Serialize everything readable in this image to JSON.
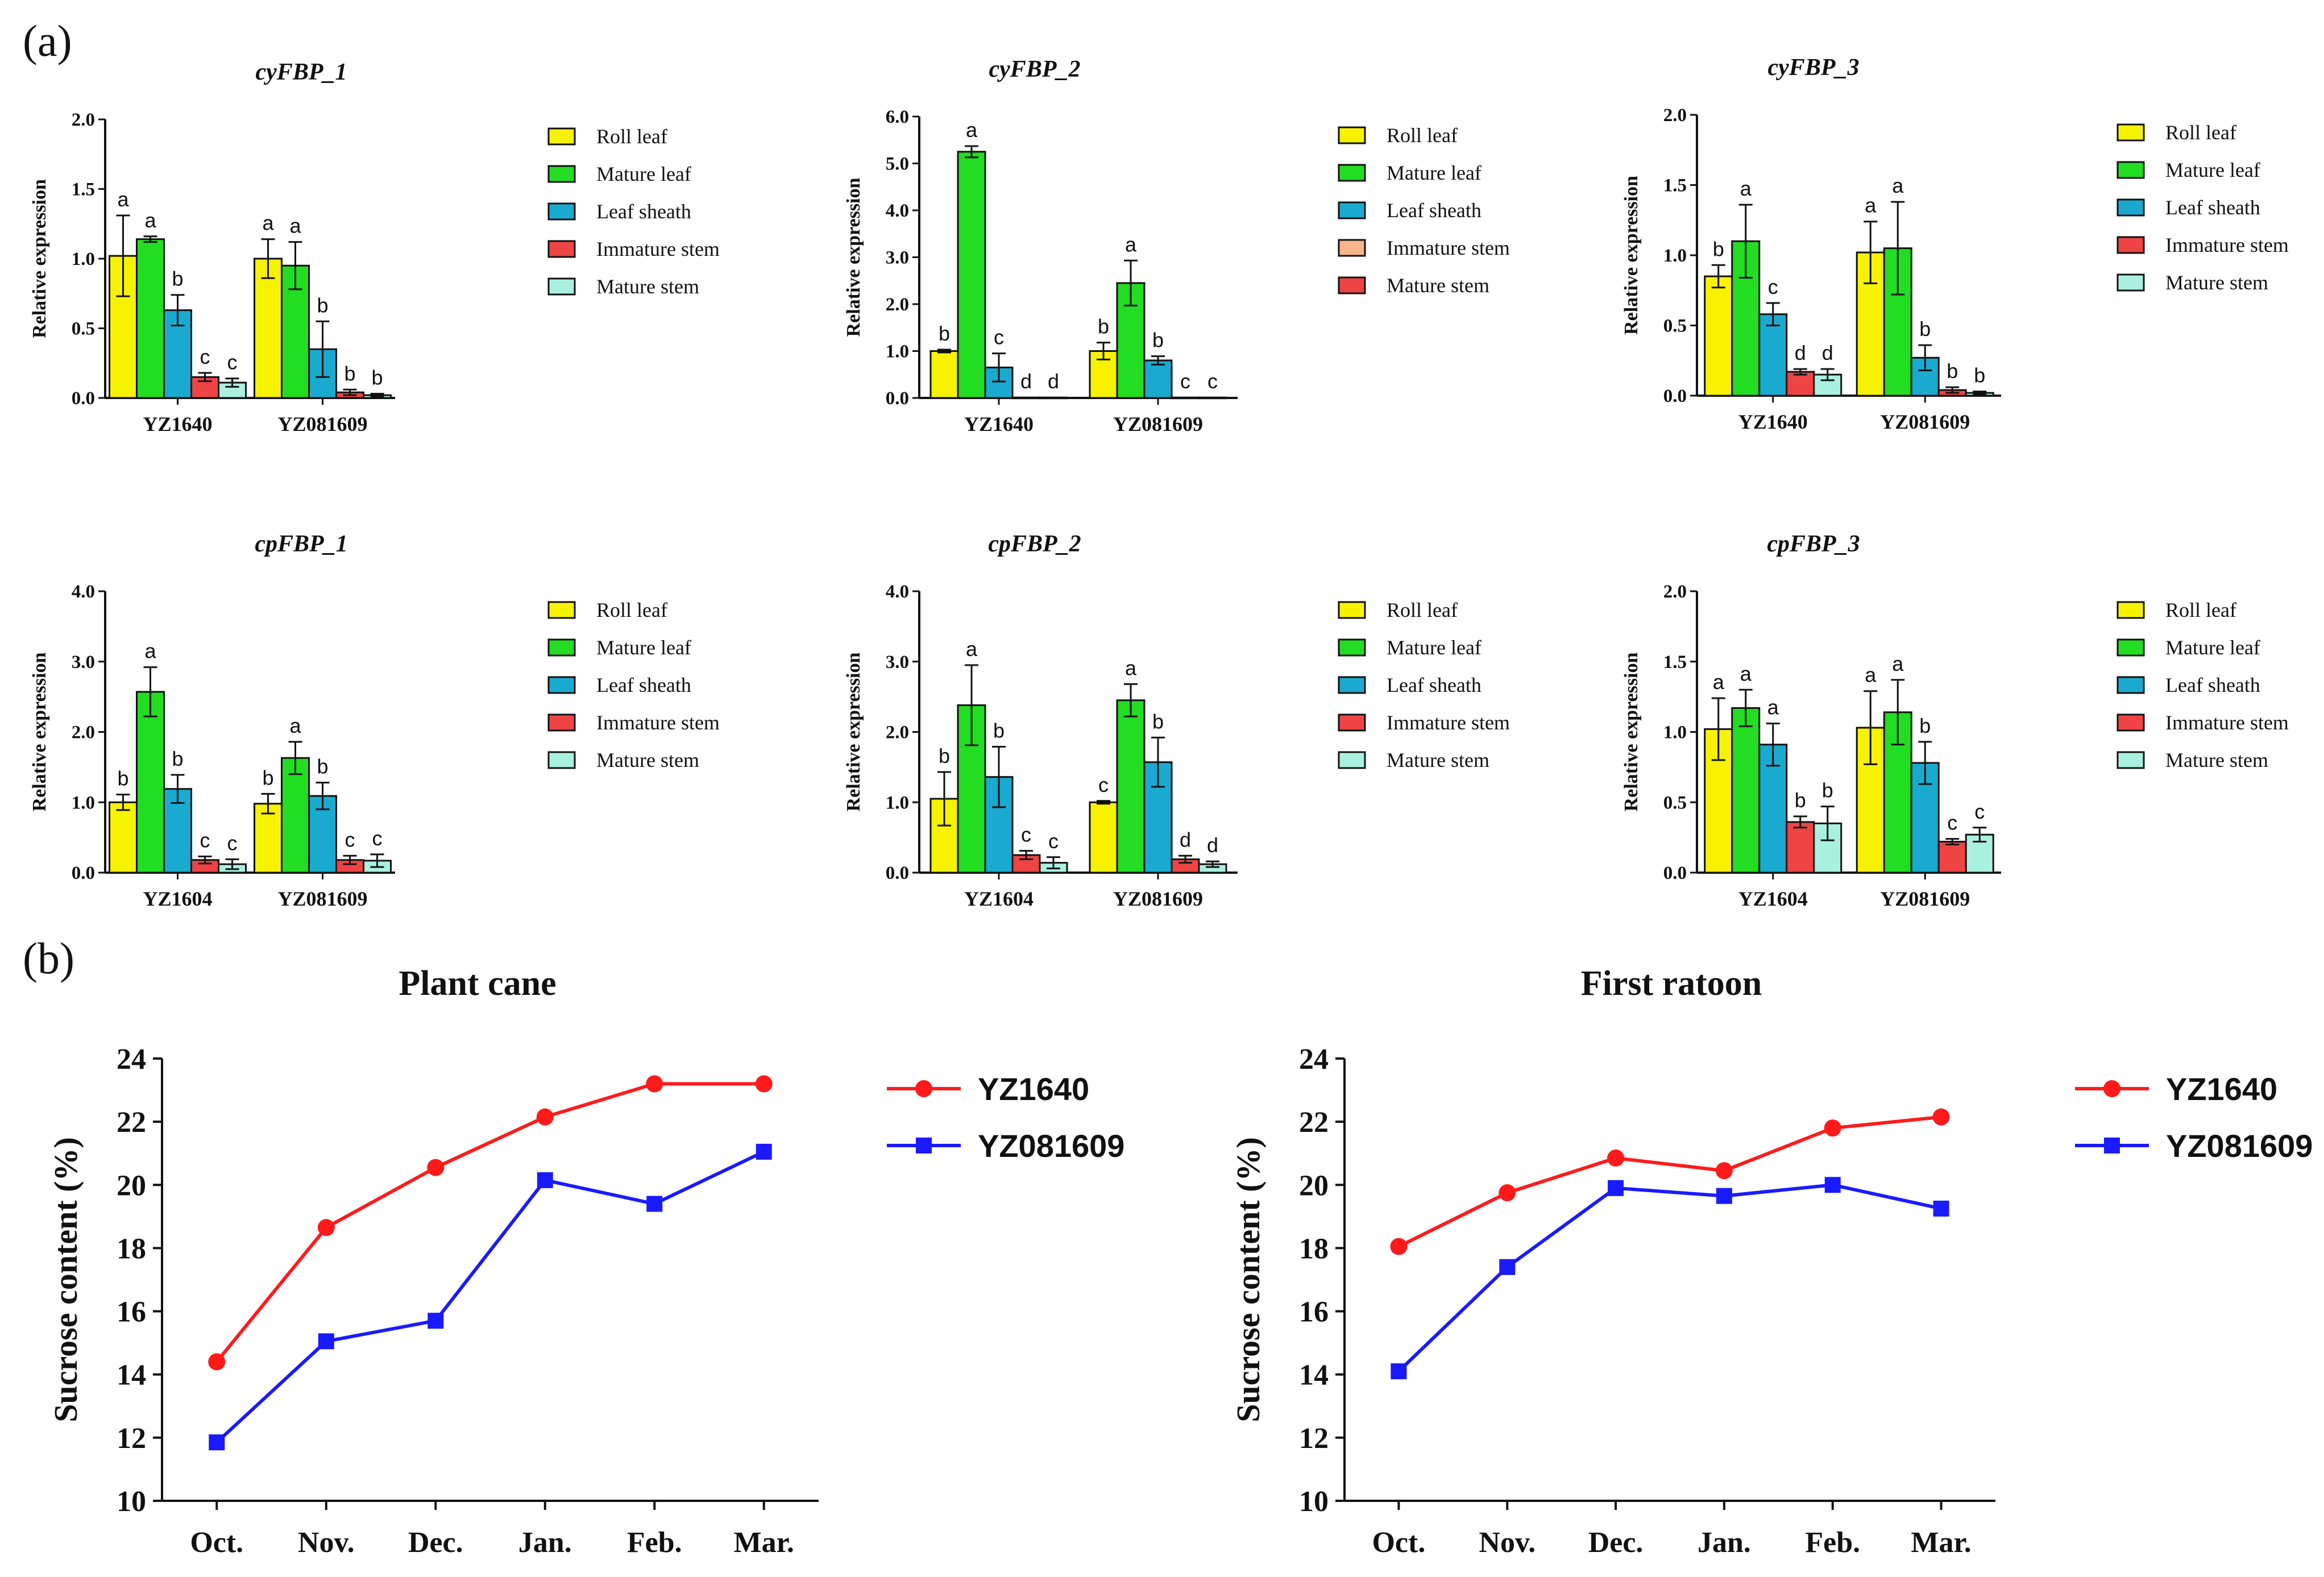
{
  "labels": {
    "panel_a": "(a)",
    "panel_b": "(b)"
  },
  "colors": {
    "roll_leaf": "#f7f200",
    "mature_leaf": "#22dd22",
    "leaf_sheath": "#1aaad0",
    "immature_stem": "#ee4444",
    "mature_stem": "#aaf0e0",
    "orange": "#f7b58a",
    "line_red": "#ff1a1a",
    "line_blue": "#1a1aff"
  },
  "chart_data": [
    {
      "type": "bar",
      "title": "cyFBP_1",
      "ylabel": "Relative expression",
      "ylim": [
        0,
        2.0
      ],
      "yticks": [
        "0.0",
        "0.5",
        "1.0",
        "1.5",
        "2.0"
      ],
      "ytick_values": [
        0,
        0.5,
        1.0,
        1.5,
        2.0
      ],
      "categories": [
        "YZ1640",
        "YZ081609"
      ],
      "legend": [
        "Roll leaf",
        "Mature leaf",
        "Leaf sheath",
        "Immature stem",
        "Mature stem"
      ],
      "series_colors": [
        "roll_leaf",
        "mature_leaf",
        "leaf_sheath",
        "immature_stem",
        "mature_stem"
      ],
      "groups": [
        {
          "values": [
            1.02,
            1.14,
            0.63,
            0.15,
            0.11
          ],
          "errors": [
            0.29,
            0.02,
            0.11,
            0.03,
            0.03
          ],
          "letters": [
            "a",
            "a",
            "b",
            "c",
            "c"
          ]
        },
        {
          "values": [
            1.0,
            0.95,
            0.35,
            0.04,
            0.02
          ],
          "errors": [
            0.14,
            0.17,
            0.2,
            0.02,
            0.01
          ],
          "letters": [
            "a",
            "a",
            "b",
            "b",
            "b"
          ]
        }
      ]
    },
    {
      "type": "bar",
      "title": "cyFBP_2",
      "ylabel": "Relative expression",
      "ylim": [
        0,
        6.0
      ],
      "yticks": [
        "0.0",
        "1.0",
        "2.0",
        "3.0",
        "4.0",
        "5.0",
        "6.0"
      ],
      "ytick_values": [
        0,
        1,
        2,
        3,
        4,
        5,
        6
      ],
      "categories": [
        "YZ1640",
        "YZ081609"
      ],
      "legend": [
        "Roll leaf",
        "Mature leaf",
        "Leaf sheath",
        "Immature stem",
        "Mature stem"
      ],
      "series_colors": [
        "roll_leaf",
        "mature_leaf",
        "leaf_sheath",
        "orange",
        "immature_stem"
      ],
      "groups": [
        {
          "values": [
            1.0,
            5.25,
            0.65,
            0.01,
            0.01
          ],
          "errors": [
            0.03,
            0.12,
            0.3,
            0.0,
            0.0
          ],
          "letters": [
            "b",
            "a",
            "c",
            "d",
            "d"
          ]
        },
        {
          "values": [
            1.0,
            2.45,
            0.8,
            0.01,
            0.01
          ],
          "errors": [
            0.18,
            0.48,
            0.09,
            0.0,
            0.0
          ],
          "letters": [
            "b",
            "a",
            "b",
            "c",
            "c"
          ]
        }
      ]
    },
    {
      "type": "bar",
      "title": "cyFBP_3",
      "ylabel": "Relative expression",
      "ylim": [
        0,
        2.0
      ],
      "yticks": [
        "0.0",
        "0.5",
        "1.0",
        "1.5",
        "2.0"
      ],
      "ytick_values": [
        0,
        0.5,
        1.0,
        1.5,
        2.0
      ],
      "categories": [
        "YZ1640",
        "YZ081609"
      ],
      "legend": [
        "Roll leaf",
        "Mature leaf",
        "Leaf sheath",
        "Immature stem",
        "Mature stem"
      ],
      "series_colors": [
        "roll_leaf",
        "mature_leaf",
        "leaf_sheath",
        "immature_stem",
        "mature_stem"
      ],
      "groups": [
        {
          "values": [
            0.85,
            1.1,
            0.58,
            0.17,
            0.15
          ],
          "errors": [
            0.08,
            0.26,
            0.08,
            0.02,
            0.04
          ],
          "letters": [
            "b",
            "a",
            "c",
            "d",
            "d"
          ]
        },
        {
          "values": [
            1.02,
            1.05,
            0.27,
            0.04,
            0.02
          ],
          "errors": [
            0.22,
            0.33,
            0.09,
            0.02,
            0.01
          ],
          "letters": [
            "a",
            "a",
            "b",
            "b",
            "b"
          ]
        }
      ]
    },
    {
      "type": "bar",
      "title": "cpFBP_1",
      "ylabel": "Relative expression",
      "ylim": [
        0,
        4.0
      ],
      "yticks": [
        "0.0",
        "1.0",
        "2.0",
        "3.0",
        "4.0"
      ],
      "ytick_values": [
        0,
        1,
        2,
        3,
        4
      ],
      "categories": [
        "YZ1604",
        "YZ081609"
      ],
      "legend": [
        "Roll leaf",
        "Mature leaf",
        "Leaf sheath",
        "Immature stem",
        "Mature stem"
      ],
      "series_colors": [
        "roll_leaf",
        "mature_leaf",
        "leaf_sheath",
        "immature_stem",
        "mature_stem"
      ],
      "groups": [
        {
          "values": [
            1.0,
            2.57,
            1.19,
            0.18,
            0.12
          ],
          "errors": [
            0.11,
            0.35,
            0.2,
            0.05,
            0.07
          ],
          "letters": [
            "b",
            "a",
            "b",
            "c",
            "c"
          ]
        },
        {
          "values": [
            0.98,
            1.63,
            1.09,
            0.18,
            0.17
          ],
          "errors": [
            0.14,
            0.23,
            0.19,
            0.06,
            0.09
          ],
          "letters": [
            "b",
            "a",
            "b",
            "c",
            "c"
          ]
        }
      ]
    },
    {
      "type": "bar",
      "title": "cpFBP_2",
      "ylabel": "Relative expression",
      "ylim": [
        0,
        4.0
      ],
      "yticks": [
        "0.0",
        "1.0",
        "2.0",
        "3.0",
        "4.0"
      ],
      "ytick_values": [
        0,
        1,
        2,
        3,
        4
      ],
      "categories": [
        "YZ1604",
        "YZ081609"
      ],
      "legend": [
        "Roll leaf",
        "Mature leaf",
        "Leaf sheath",
        "Immature stem",
        "Mature stem"
      ],
      "series_colors": [
        "roll_leaf",
        "mature_leaf",
        "leaf_sheath",
        "immature_stem",
        "mature_stem"
      ],
      "groups": [
        {
          "values": [
            1.05,
            2.38,
            1.36,
            0.25,
            0.14
          ],
          "errors": [
            0.38,
            0.57,
            0.43,
            0.06,
            0.08
          ],
          "letters": [
            "b",
            "a",
            "b",
            "c",
            "c"
          ]
        },
        {
          "values": [
            1.0,
            2.45,
            1.57,
            0.19,
            0.12
          ],
          "errors": [
            0.02,
            0.23,
            0.35,
            0.05,
            0.04
          ],
          "letters": [
            "c",
            "a",
            "b",
            "d",
            "d"
          ]
        }
      ]
    },
    {
      "type": "bar",
      "title": "cpFBP_3",
      "ylabel": "Relative expression",
      "ylim": [
        0,
        2.0
      ],
      "yticks": [
        "0.0",
        "0.5",
        "1.0",
        "1.5",
        "2.0"
      ],
      "ytick_values": [
        0,
        0.5,
        1.0,
        1.5,
        2.0
      ],
      "categories": [
        "YZ1604",
        "YZ081609"
      ],
      "legend": [
        "Roll leaf",
        "Mature leaf",
        "Leaf sheath",
        "Immature stem",
        "Mature stem"
      ],
      "series_colors": [
        "roll_leaf",
        "mature_leaf",
        "leaf_sheath",
        "immature_stem",
        "mature_stem"
      ],
      "groups": [
        {
          "values": [
            1.02,
            1.17,
            0.91,
            0.36,
            0.35
          ],
          "errors": [
            0.22,
            0.13,
            0.15,
            0.04,
            0.12
          ],
          "letters": [
            "a",
            "a",
            "a",
            "b",
            "b"
          ]
        },
        {
          "values": [
            1.03,
            1.14,
            0.78,
            0.22,
            0.27
          ],
          "errors": [
            0.26,
            0.23,
            0.15,
            0.02,
            0.05
          ],
          "letters": [
            "a",
            "a",
            "b",
            "c",
            "c"
          ]
        }
      ]
    },
    {
      "type": "line",
      "title": "Plant cane",
      "ylabel": "Sucrose content (%)",
      "ylim": [
        10,
        24
      ],
      "yticks": [
        "10",
        "12",
        "14",
        "16",
        "18",
        "20",
        "22",
        "24"
      ],
      "ytick_values": [
        10,
        12,
        14,
        16,
        18,
        20,
        22,
        24
      ],
      "x": [
        "Oct.",
        "Nov.",
        "Dec.",
        "Jan.",
        "Feb.",
        "Mar."
      ],
      "series": [
        {
          "name": "YZ1640",
          "color": "line_red",
          "marker": "circle",
          "values": [
            14.4,
            18.65,
            20.55,
            22.15,
            23.2,
            23.2
          ]
        },
        {
          "name": "YZ081609",
          "color": "line_blue",
          "marker": "square",
          "values": [
            11.85,
            15.05,
            15.7,
            20.15,
            19.4,
            21.05
          ]
        }
      ]
    },
    {
      "type": "line",
      "title": "First ratoon",
      "ylabel": "Sucrose content (%)",
      "ylim": [
        10,
        24
      ],
      "yticks": [
        "10",
        "12",
        "14",
        "16",
        "18",
        "20",
        "22",
        "24"
      ],
      "ytick_values": [
        10,
        12,
        14,
        16,
        18,
        20,
        22,
        24
      ],
      "x": [
        "Oct.",
        "Nov.",
        "Dec.",
        "Jan.",
        "Feb.",
        "Mar."
      ],
      "series": [
        {
          "name": "YZ1640",
          "color": "line_red",
          "marker": "circle",
          "values": [
            18.05,
            19.75,
            20.85,
            20.45,
            21.8,
            22.15
          ]
        },
        {
          "name": "YZ081609",
          "color": "line_blue",
          "marker": "square",
          "values": [
            14.1,
            17.4,
            19.9,
            19.65,
            20.0,
            19.25
          ]
        }
      ]
    }
  ]
}
